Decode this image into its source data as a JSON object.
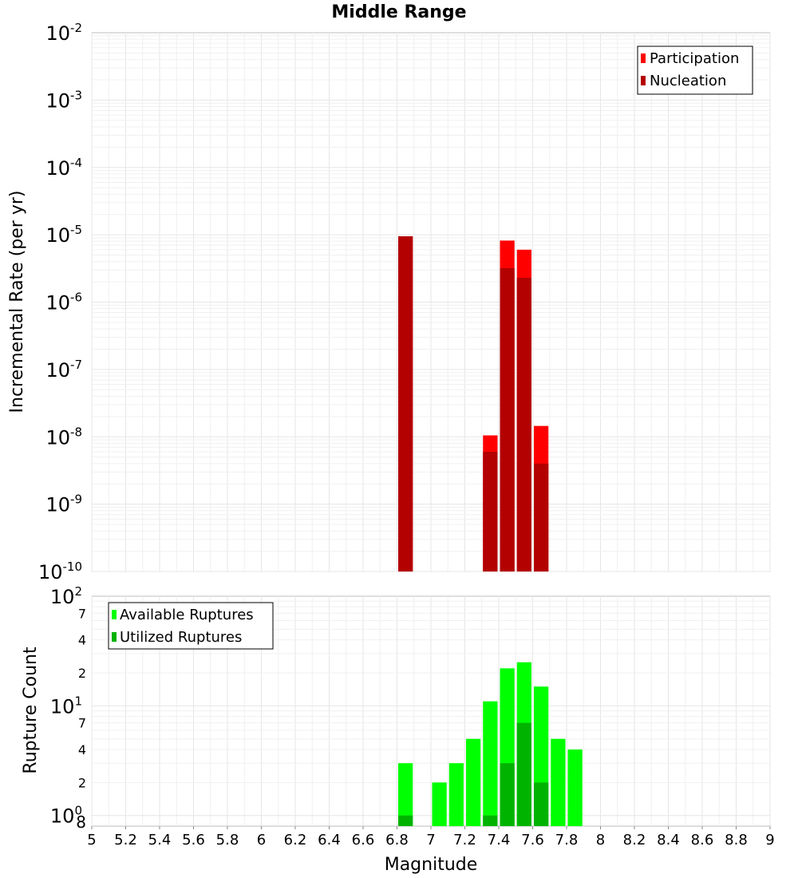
{
  "chart_data": [
    {
      "id": "top",
      "type": "bar",
      "title": "Middle Range",
      "ylabel": "Incremental Rate (per yr)",
      "yscale": "log",
      "ylim": [
        1e-10,
        0.01
      ],
      "xlim": [
        5,
        9
      ],
      "grid": true,
      "legend_position": "top-right",
      "y_tick_exponents": [
        "-10",
        "-9",
        "-8",
        "-7",
        "-6",
        "-5",
        "-4",
        "-3",
        "-2"
      ],
      "y_tick_base": "10",
      "series": [
        {
          "name": "Participation",
          "color": "#ff0000",
          "points": [
            {
              "x": 6.85,
              "y": 9.5e-06
            },
            {
              "x": 7.35,
              "y": 1.05e-08
            },
            {
              "x": 7.45,
              "y": 8.2e-06
            },
            {
              "x": 7.55,
              "y": 6e-06
            },
            {
              "x": 7.65,
              "y": 1.45e-08
            }
          ]
        },
        {
          "name": "Nucleation",
          "color": "#b30000",
          "points": [
            {
              "x": 6.85,
              "y": 9.5e-06
            },
            {
              "x": 7.35,
              "y": 6e-09
            },
            {
              "x": 7.45,
              "y": 3.2e-06
            },
            {
              "x": 7.55,
              "y": 2.3e-06
            },
            {
              "x": 7.65,
              "y": 4e-09
            }
          ]
        }
      ]
    },
    {
      "id": "bottom",
      "type": "bar",
      "ylabel": "Rupture Count",
      "xlabel": "Magnitude",
      "yscale": "log",
      "ylim": [
        0.8,
        100
      ],
      "xlim": [
        5,
        9
      ],
      "grid": true,
      "legend_position": "top-left",
      "x_ticks": [
        "5",
        "5.2",
        "5.4",
        "5.6",
        "5.8",
        "6",
        "6.2",
        "6.4",
        "6.6",
        "6.8",
        "7",
        "7.2",
        "7.4",
        "7.6",
        "7.8",
        "8",
        "8.2",
        "8.4",
        "8.6",
        "8.8",
        "9"
      ],
      "y_major_ticks": [
        {
          "value": 1,
          "base": "10",
          "exp": "0"
        },
        {
          "value": 10,
          "base": "10",
          "exp": "1"
        },
        {
          "value": 100,
          "base": "10",
          "exp": "2"
        }
      ],
      "y_minor_ticks": [
        {
          "value": 0.8,
          "label": "8"
        },
        {
          "value": 2,
          "label": "2"
        },
        {
          "value": 4,
          "label": "4"
        },
        {
          "value": 7,
          "label": "7"
        },
        {
          "value": 20,
          "label": "2"
        },
        {
          "value": 40,
          "label": "4"
        },
        {
          "value": 70,
          "label": "7"
        }
      ],
      "series": [
        {
          "name": "Available Ruptures",
          "color": "#00ff00",
          "points": [
            {
              "x": 6.85,
              "y": 3
            },
            {
              "x": 7.05,
              "y": 2
            },
            {
              "x": 7.15,
              "y": 3
            },
            {
              "x": 7.25,
              "y": 5
            },
            {
              "x": 7.35,
              "y": 11
            },
            {
              "x": 7.45,
              "y": 22
            },
            {
              "x": 7.55,
              "y": 25
            },
            {
              "x": 7.65,
              "y": 15
            },
            {
              "x": 7.75,
              "y": 5
            },
            {
              "x": 7.85,
              "y": 4
            }
          ]
        },
        {
          "name": "Utilized Ruptures",
          "color": "#00b300",
          "points": [
            {
              "x": 6.85,
              "y": 1
            },
            {
              "x": 7.35,
              "y": 1
            },
            {
              "x": 7.45,
              "y": 3
            },
            {
              "x": 7.55,
              "y": 7
            },
            {
              "x": 7.65,
              "y": 2
            }
          ]
        }
      ]
    }
  ]
}
